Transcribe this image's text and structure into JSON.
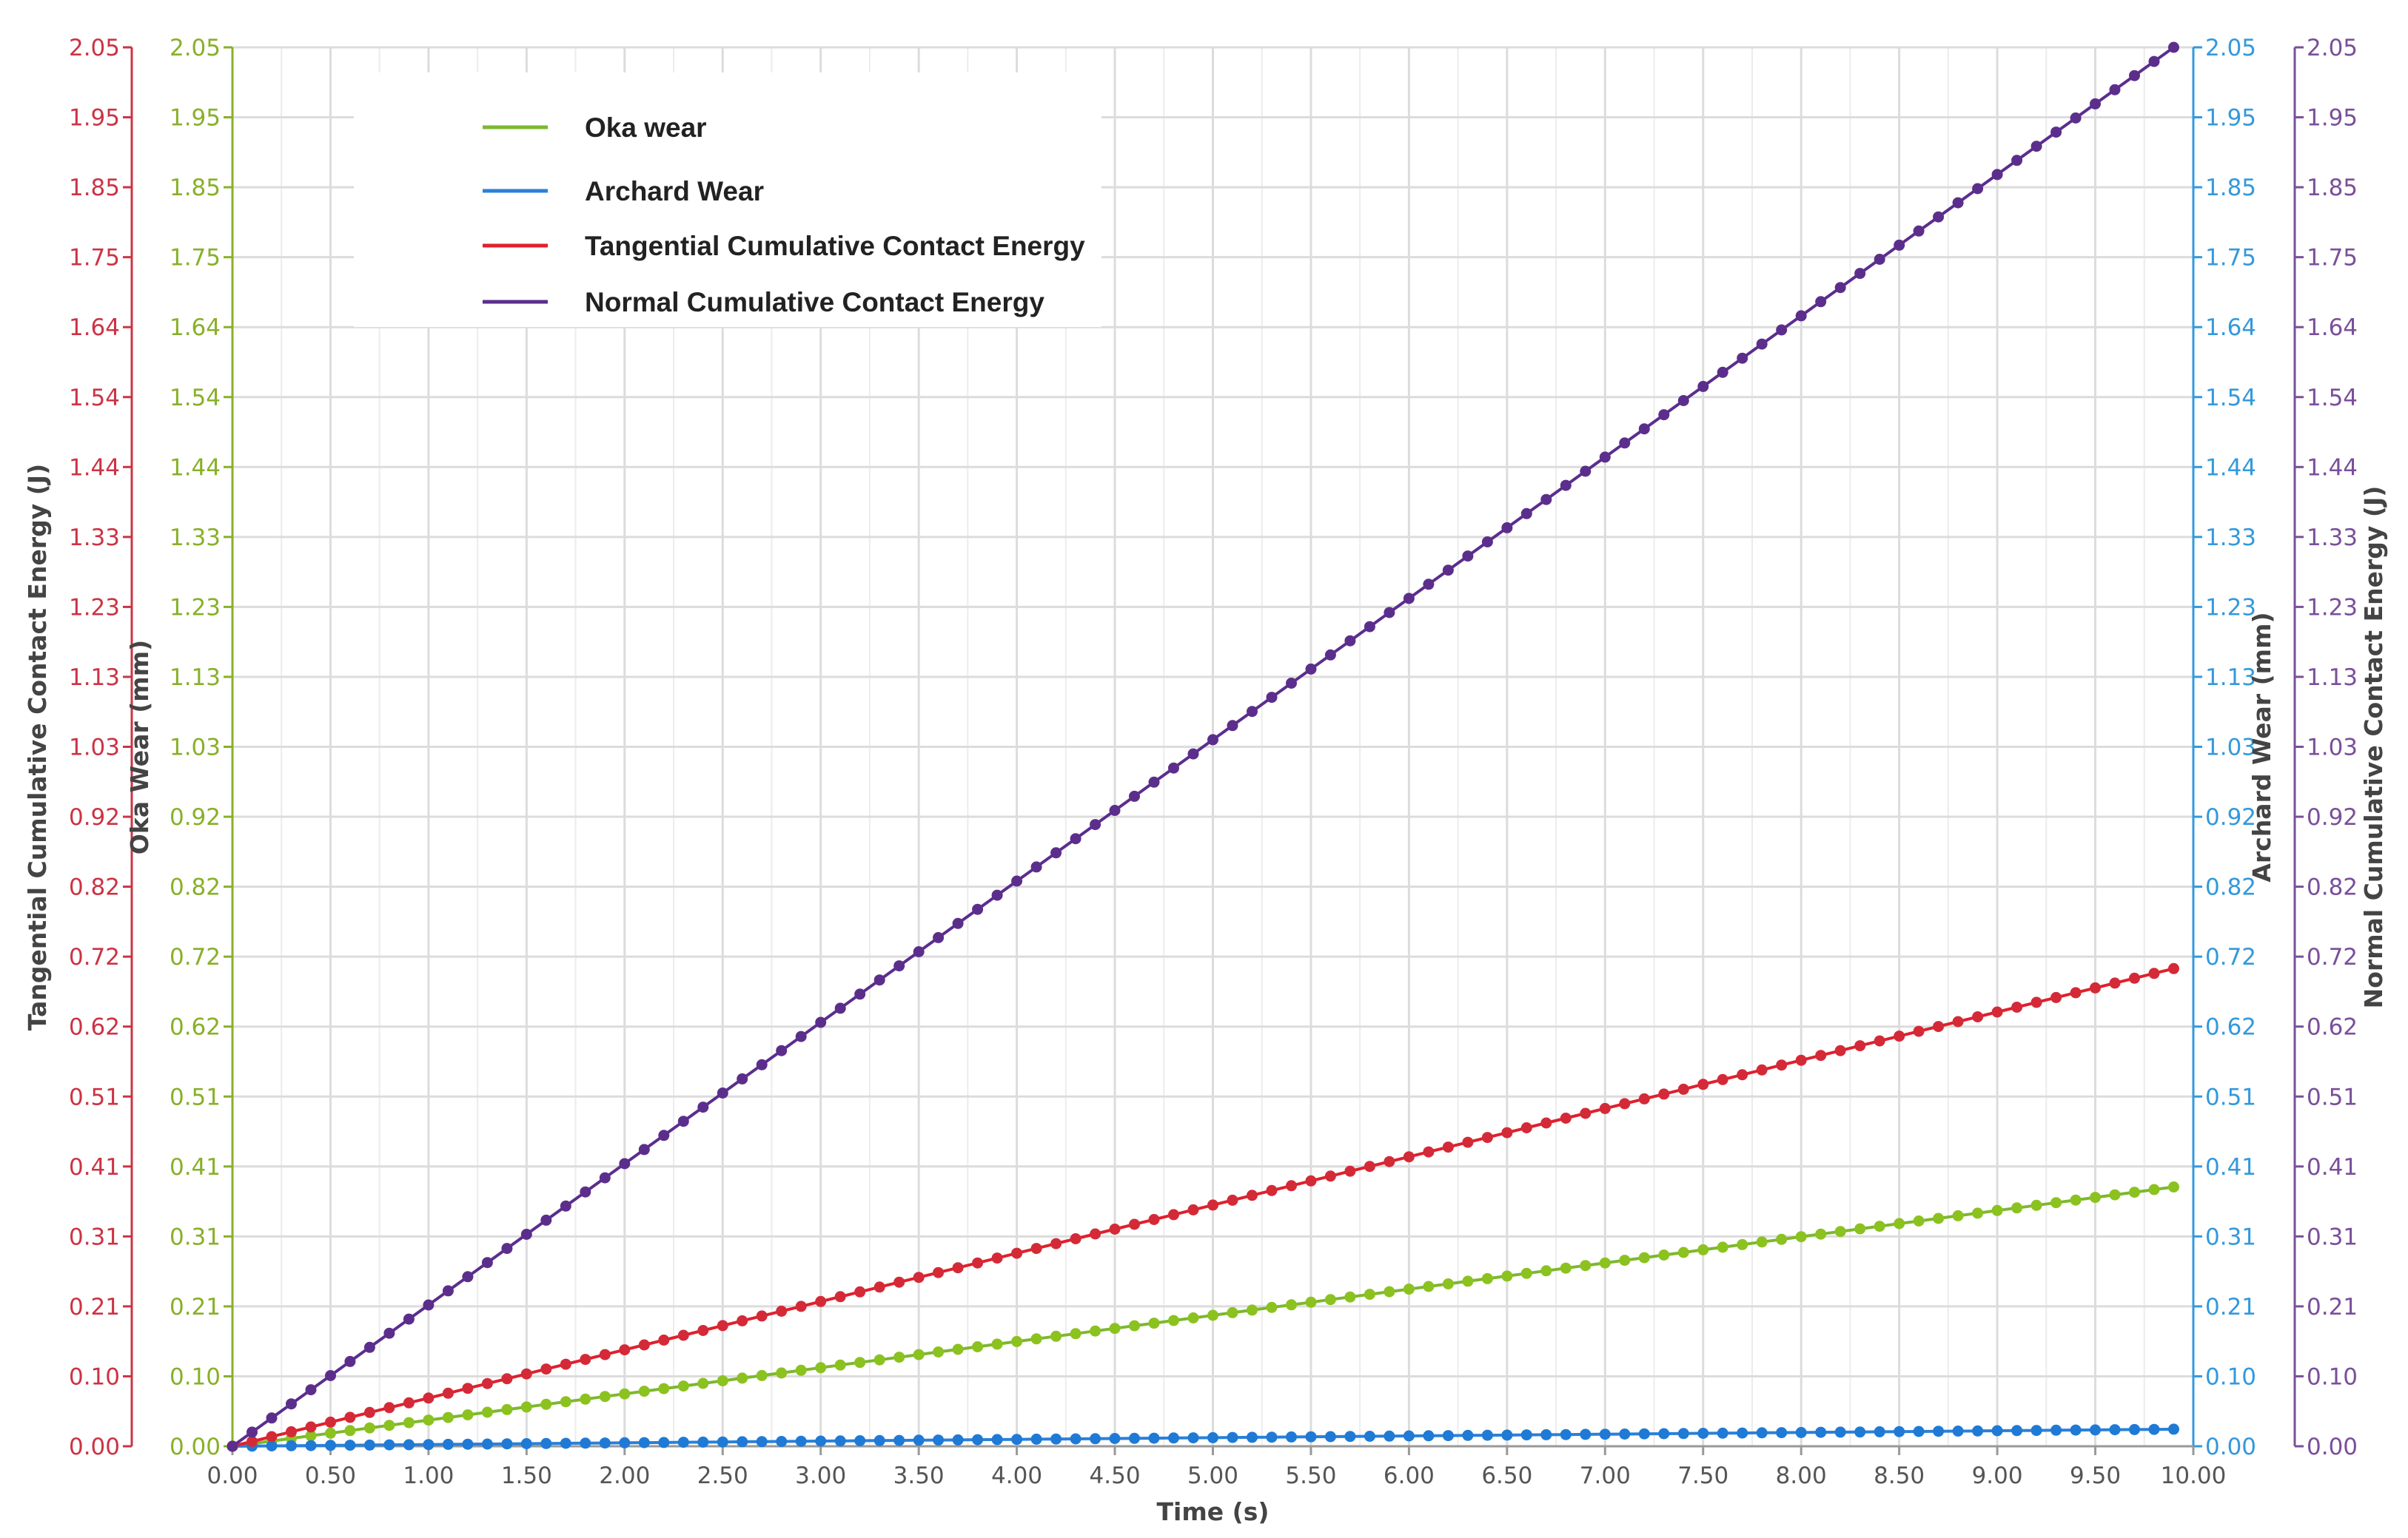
{
  "chart_data": {
    "type": "line",
    "title": "",
    "xlabel": "Time (s)",
    "xlim": [
      0,
      10
    ],
    "x_ticks": [
      "0.00",
      "0.50",
      "1.00",
      "1.50",
      "2.00",
      "2.50",
      "3.00",
      "3.50",
      "4.00",
      "4.50",
      "5.00",
      "5.50",
      "6.00",
      "6.50",
      "7.00",
      "7.50",
      "8.00",
      "8.50",
      "9.00",
      "9.50",
      "10.00"
    ],
    "y_ticks": [
      "0.00",
      "0.10",
      "0.21",
      "0.31",
      "0.41",
      "0.51",
      "0.62",
      "0.72",
      "0.82",
      "0.92",
      "1.03",
      "1.13",
      "1.23",
      "1.33",
      "1.44",
      "1.54",
      "1.64",
      "1.75",
      "1.85",
      "1.95",
      "2.05"
    ],
    "ylim": [
      0,
      2.05
    ],
    "grid": true,
    "legend_position": "top-left",
    "axes": [
      {
        "id": "tangential",
        "label": "Tangential Cumulative Contact Energy (J)",
        "side": "left-outer",
        "color": "#cc3344"
      },
      {
        "id": "oka",
        "label": "Oka Wear (mm)",
        "side": "left-inner",
        "color": "#88b028"
      },
      {
        "id": "archard",
        "label": "Archard Wear (mm)",
        "side": "right-inner",
        "color": "#3399dd"
      },
      {
        "id": "normal",
        "label": "Normal Cumulative Contact Energy (J)",
        "side": "right-outer",
        "color": "#7a4f9a"
      }
    ],
    "series": [
      {
        "name": "Oka wear",
        "axis": "oka",
        "color": "#7cb82f",
        "marker_color": "#8cc21f",
        "x": [
          0,
          9.9
        ],
        "y": [
          0,
          0.38
        ]
      },
      {
        "name": "Archard Wear",
        "axis": "archard",
        "color": "#2a80d8",
        "marker_color": "#1f7ad6",
        "x": [
          0,
          9.9
        ],
        "y": [
          0,
          0.025
        ]
      },
      {
        "name": "Tangential Cumulative Contact Energy",
        "axis": "tangential",
        "color": "#e0202c",
        "marker_color": "#d42a38",
        "x": [
          0,
          9.9
        ],
        "y": [
          0,
          0.7
        ]
      },
      {
        "name": "Normal Cumulative Contact Energy",
        "axis": "normal",
        "color": "#5b2d8f",
        "marker_color": "#5c2e8c",
        "x": [
          0,
          9.9
        ],
        "y": [
          0,
          2.05
        ]
      }
    ],
    "point_count": 100
  }
}
